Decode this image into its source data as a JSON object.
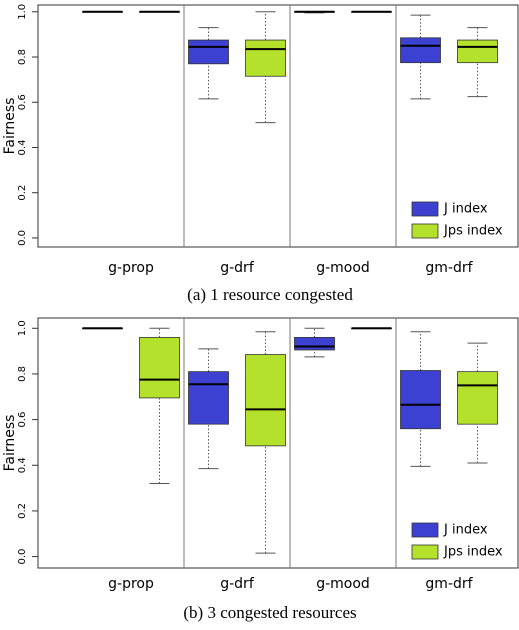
{
  "chart_data": [
    {
      "type": "box",
      "caption": "(a) 1 resource congested",
      "ylabel": "Fairness",
      "categories": [
        "g-prop",
        "g-drf",
        "g-mood",
        "gm-drf"
      ],
      "ylim": [
        -0.04,
        1.03
      ],
      "yticks": [
        {
          "value": 0,
          "label": "0.0"
        },
        0.2,
        0.4,
        0.6,
        0.8,
        {
          "value": 1,
          "label": "1.0"
        }
      ],
      "legend": "lower right",
      "series": [
        {
          "name": "J index",
          "color": "#3c41d2",
          "low": [
            1,
            0.615,
            0.995,
            0.615
          ],
          "q1": [
            1,
            0.77,
            0.998,
            0.775
          ],
          "median": [
            1,
            0.845,
            1,
            0.85
          ],
          "q3": [
            1,
            0.875,
            1,
            0.885
          ],
          "high": [
            1,
            0.93,
            1,
            0.985
          ]
        },
        {
          "name": "Jps index",
          "color": "#b4e22c",
          "low": [
            1,
            0.51,
            1,
            0.625
          ],
          "q1": [
            1,
            0.715,
            1,
            0.775
          ],
          "median": [
            1,
            0.835,
            1,
            0.845
          ],
          "q3": [
            1,
            0.875,
            1,
            0.875
          ],
          "high": [
            1,
            1,
            1,
            0.93
          ]
        }
      ]
    },
    {
      "type": "box",
      "caption": "(b) 3 congested resources",
      "ylabel": "Fairness",
      "categories": [
        "g-prop",
        "g-drf",
        "g-mood",
        "gm-drf"
      ],
      "ylim": [
        -0.05,
        1.045
      ],
      "yticks": [
        {
          "value": 0,
          "label": "0.0"
        },
        0.2,
        0.4,
        0.6,
        0.8,
        {
          "value": 1,
          "label": "1.0"
        }
      ],
      "legend": "lower right",
      "series": [
        {
          "name": "J index",
          "color": "#3c41d2",
          "low": [
            1,
            0.385,
            0.875,
            0.395
          ],
          "q1": [
            1,
            0.58,
            0.905,
            0.56
          ],
          "median": [
            1,
            0.755,
            0.92,
            0.665
          ],
          "q3": [
            1,
            0.81,
            0.96,
            0.815
          ],
          "high": [
            1,
            0.91,
            1,
            0.985
          ]
        },
        {
          "name": "Jps index",
          "color": "#b4e22c",
          "low": [
            0.32,
            0.015,
            1,
            0.41
          ],
          "q1": [
            0.695,
            0.485,
            1,
            0.58
          ],
          "median": [
            0.775,
            0.645,
            1,
            0.75
          ],
          "q3": [
            0.96,
            0.885,
            1,
            0.81
          ],
          "high": [
            1,
            0.985,
            1,
            0.935
          ]
        }
      ]
    }
  ]
}
